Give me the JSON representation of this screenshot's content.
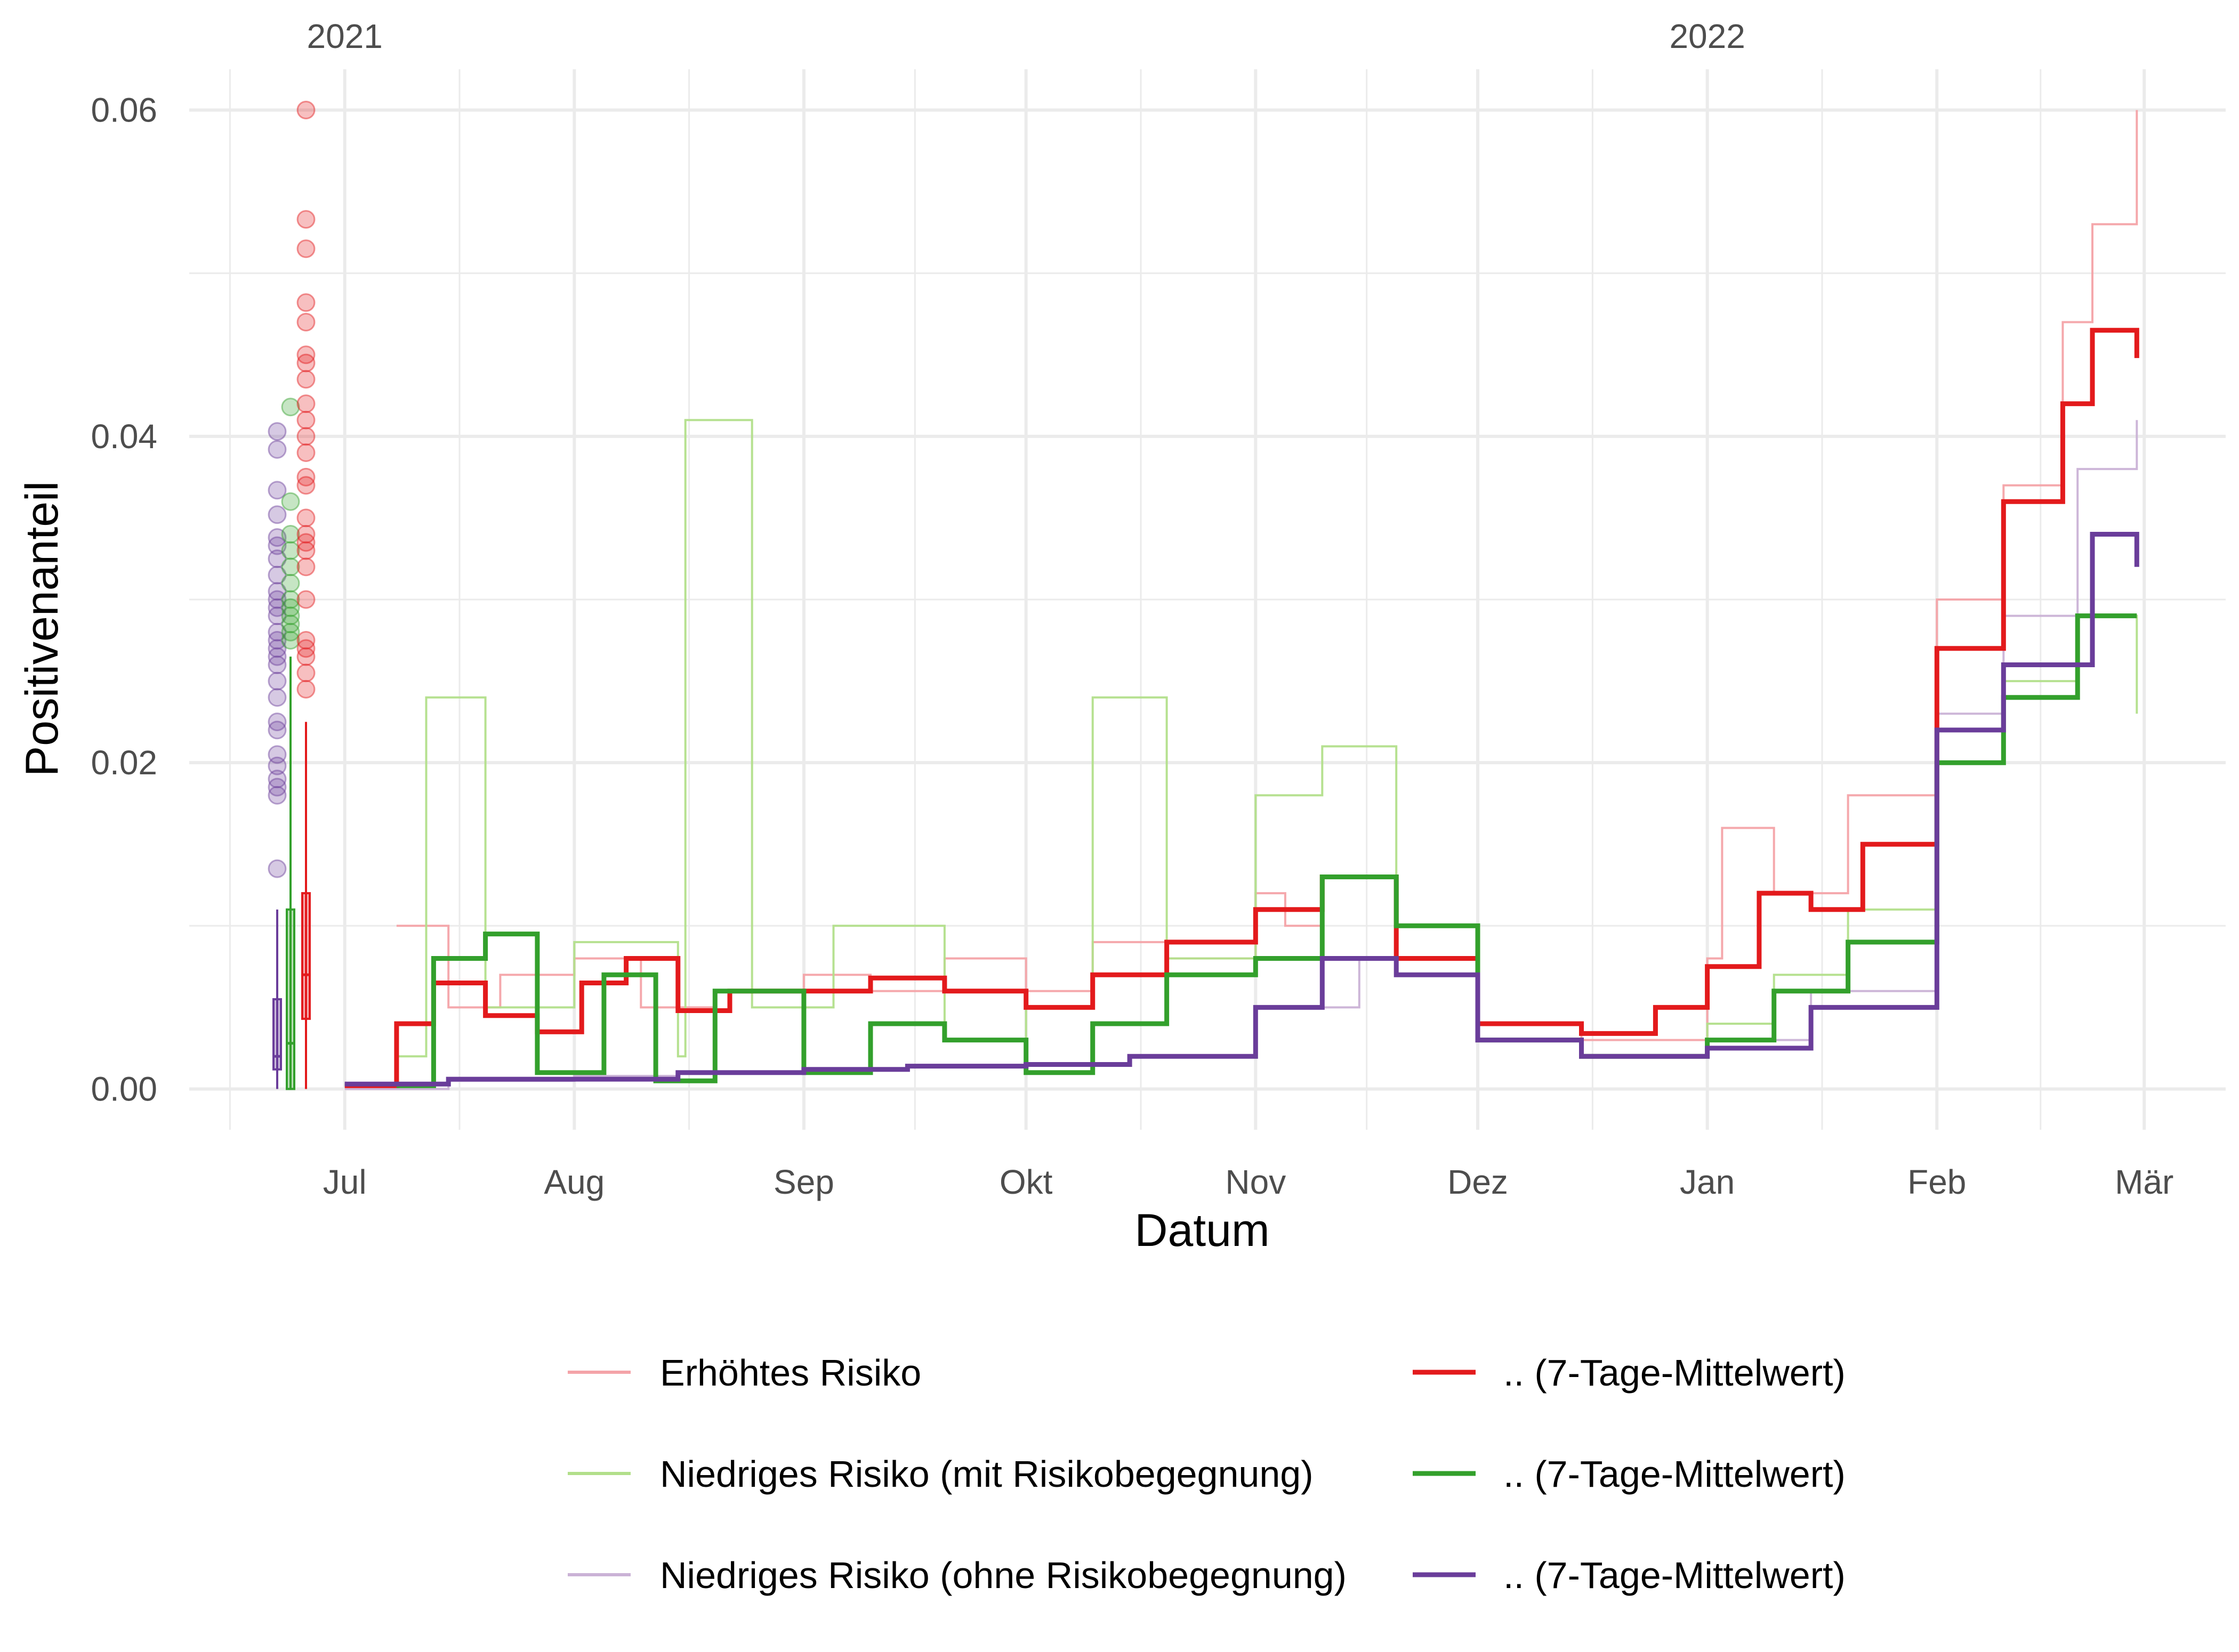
{
  "chart_data": {
    "type": "line",
    "xlabel": "Datum",
    "ylabel": "Positivenanteil",
    "ylim": [
      -0.0025,
      0.0625
    ],
    "y_ticks": [
      0.0,
      0.02,
      0.04,
      0.06
    ],
    "y_tick_labels": [
      "0.00",
      "0.02",
      "0.04",
      "0.06"
    ],
    "x_range": [
      "2021-06-10",
      "2022-03-12"
    ],
    "x_ticks": [
      {
        "date": "2021-07-01",
        "label": "Jul"
      },
      {
        "date": "2021-08-01",
        "label": "Aug"
      },
      {
        "date": "2021-09-01",
        "label": "Sep"
      },
      {
        "date": "2021-10-01",
        "label": "Okt"
      },
      {
        "date": "2021-11-01",
        "label": "Nov"
      },
      {
        "date": "2021-12-01",
        "label": "Dez"
      },
      {
        "date": "2022-01-01",
        "label": "Jan"
      },
      {
        "date": "2022-02-01",
        "label": "Feb"
      },
      {
        "date": "2022-03-01",
        "label": "Mär"
      }
    ],
    "year_labels": [
      {
        "date": "2021-07-01",
        "label": "2021"
      },
      {
        "date": "2022-01-01",
        "label": "2022"
      }
    ],
    "grid": true,
    "legend_position": "bottom",
    "colors": {
      "red_light": "#f4a3a8",
      "red": "#e31a1c",
      "green_light": "#b2df8a",
      "green": "#33a02c",
      "purple_light": "#cab2d6",
      "purple": "#6a3d9a"
    },
    "series": [
      {
        "name": "Erhöhtes Risiko",
        "color": "#f4a3a8",
        "style": "thin",
        "x": [
          "2021-07-08",
          "2021-07-15",
          "2021-07-22",
          "2021-08-01",
          "2021-08-10",
          "2021-08-20",
          "2021-09-01",
          "2021-09-10",
          "2021-09-20",
          "2021-10-01",
          "2021-10-10",
          "2021-10-20",
          "2021-11-01",
          "2021-11-05",
          "2021-11-10",
          "2021-11-20",
          "2021-12-01",
          "2021-12-15",
          "2022-01-01",
          "2022-01-03",
          "2022-01-10",
          "2022-01-20",
          "2022-02-01",
          "2022-02-10",
          "2022-02-18",
          "2022-02-22",
          "2022-02-28"
        ],
        "y": [
          0.01,
          0.005,
          0.007,
          0.008,
          0.005,
          0.006,
          0.007,
          0.006,
          0.008,
          0.006,
          0.009,
          0.008,
          0.012,
          0.01,
          0.013,
          0.01,
          0.004,
          0.003,
          0.008,
          0.016,
          0.012,
          0.018,
          0.03,
          0.037,
          0.047,
          0.053,
          0.06
        ]
      },
      {
        "name": "Niedriges Risiko (mit Risikobegegnung)",
        "color": "#b2df8a",
        "style": "thin",
        "x": [
          "2021-07-08",
          "2021-07-12",
          "2021-07-20",
          "2021-08-01",
          "2021-08-15",
          "2021-08-16",
          "2021-08-25",
          "2021-09-05",
          "2021-09-20",
          "2021-10-01",
          "2021-10-10",
          "2021-10-20",
          "2021-11-01",
          "2021-11-10",
          "2021-11-20",
          "2021-12-01",
          "2021-12-15",
          "2022-01-01",
          "2022-01-10",
          "2022-01-20",
          "2022-02-01",
          "2022-02-10",
          "2022-02-20",
          "2022-02-28"
        ],
        "y": [
          0.002,
          0.024,
          0.005,
          0.009,
          0.002,
          0.041,
          0.005,
          0.01,
          0.003,
          0.005,
          0.024,
          0.008,
          0.018,
          0.021,
          0.008,
          0.003,
          0.002,
          0.004,
          0.007,
          0.011,
          0.02,
          0.025,
          0.029,
          0.023
        ]
      },
      {
        "name": "Niedriges Risiko (ohne Risikobegegnung)",
        "color": "#cab2d6",
        "style": "thin",
        "x": [
          "2021-07-01",
          "2021-07-15",
          "2021-08-01",
          "2021-08-15",
          "2021-09-01",
          "2021-09-15",
          "2021-10-01",
          "2021-10-15",
          "2021-11-01",
          "2021-11-15",
          "2021-12-01",
          "2021-12-15",
          "2022-01-01",
          "2022-01-15",
          "2022-02-01",
          "2022-02-10",
          "2022-02-20",
          "2022-02-28"
        ],
        "y": [
          0.0,
          0.0005,
          0.0008,
          0.001,
          0.0012,
          0.0014,
          0.0015,
          0.002,
          0.005,
          0.008,
          0.003,
          0.002,
          0.003,
          0.006,
          0.023,
          0.029,
          0.038,
          0.041
        ]
      },
      {
        "name": ".. (7-Tage-Mittelwert)",
        "color": "#e31a1c",
        "style": "thick",
        "x": [
          "2021-07-01",
          "2021-07-08",
          "2021-07-13",
          "2021-07-20",
          "2021-07-27",
          "2021-08-02",
          "2021-08-08",
          "2021-08-15",
          "2021-08-22",
          "2021-09-01",
          "2021-09-10",
          "2021-09-20",
          "2021-10-01",
          "2021-10-10",
          "2021-10-20",
          "2021-11-01",
          "2021-11-10",
          "2021-11-20",
          "2021-12-01",
          "2021-12-15",
          "2021-12-25",
          "2022-01-01",
          "2022-01-08",
          "2022-01-15",
          "2022-01-22",
          "2022-02-01",
          "2022-02-10",
          "2022-02-18",
          "2022-02-22",
          "2022-02-28"
        ],
        "y": [
          0.0002,
          0.004,
          0.0065,
          0.0045,
          0.0035,
          0.0065,
          0.008,
          0.0048,
          0.006,
          0.006,
          0.0068,
          0.006,
          0.005,
          0.007,
          0.009,
          0.011,
          0.013,
          0.008,
          0.004,
          0.0034,
          0.005,
          0.0075,
          0.012,
          0.011,
          0.015,
          0.027,
          0.036,
          0.042,
          0.0465,
          0.0448
        ]
      },
      {
        "name": ".. (7-Tage-Mittelwert)",
        "color": "#33a02c",
        "style": "thick",
        "x": [
          "2021-07-08",
          "2021-07-13",
          "2021-07-20",
          "2021-07-27",
          "2021-08-05",
          "2021-08-12",
          "2021-08-20",
          "2021-09-01",
          "2021-09-10",
          "2021-09-20",
          "2021-10-01",
          "2021-10-10",
          "2021-10-20",
          "2021-11-01",
          "2021-11-10",
          "2021-11-20",
          "2021-12-01",
          "2021-12-15",
          "2022-01-01",
          "2022-01-10",
          "2022-01-20",
          "2022-02-01",
          "2022-02-10",
          "2022-02-20",
          "2022-02-28"
        ],
        "y": [
          0.0002,
          0.008,
          0.0095,
          0.001,
          0.007,
          0.0005,
          0.006,
          0.001,
          0.004,
          0.003,
          0.001,
          0.004,
          0.007,
          0.008,
          0.013,
          0.01,
          0.003,
          0.002,
          0.003,
          0.006,
          0.009,
          0.02,
          0.024,
          0.029,
          0.029
        ]
      },
      {
        "name": ".. (7-Tage-Mittelwert)",
        "color": "#6a3d9a",
        "style": "thick",
        "x": [
          "2021-07-01",
          "2021-07-15",
          "2021-08-01",
          "2021-08-15",
          "2021-09-01",
          "2021-09-15",
          "2021-10-01",
          "2021-10-15",
          "2021-11-01",
          "2021-11-10",
          "2021-11-20",
          "2021-12-01",
          "2021-12-15",
          "2022-01-01",
          "2022-01-15",
          "2022-02-01",
          "2022-02-10",
          "2022-02-22",
          "2022-02-28"
        ],
        "y": [
          0.0003,
          0.0006,
          0.0006,
          0.001,
          0.0012,
          0.0014,
          0.0015,
          0.002,
          0.005,
          0.008,
          0.007,
          0.003,
          0.002,
          0.0025,
          0.005,
          0.022,
          0.026,
          0.034,
          0.032
        ]
      }
    ],
    "distributions": [
      {
        "color": "#6a3d9a",
        "points": [
          0.0135,
          0.018,
          0.0185,
          0.019,
          0.0198,
          0.0205,
          0.022,
          0.0225,
          0.024,
          0.025,
          0.026,
          0.0265,
          0.027,
          0.0275,
          0.028,
          0.029,
          0.0295,
          0.03,
          0.0305,
          0.0315,
          0.0325,
          0.0333,
          0.0338,
          0.0352,
          0.0367,
          0.0392,
          0.0403
        ],
        "box": {
          "whisker_low": 0.0,
          "q1": 0.0012,
          "median": 0.002,
          "q3": 0.0055,
          "whisker_high": 0.011
        }
      },
      {
        "color": "#33a02c",
        "points": [
          0.0275,
          0.028,
          0.0285,
          0.029,
          0.0295,
          0.03,
          0.031,
          0.032,
          0.033,
          0.034,
          0.036,
          0.0418
        ],
        "box": {
          "whisker_low": 0.0,
          "q1": 0.0,
          "median": 0.0028,
          "q3": 0.011,
          "whisker_high": 0.0265
        }
      },
      {
        "color": "#e31a1c",
        "points": [
          0.0245,
          0.0255,
          0.0265,
          0.027,
          0.0275,
          0.03,
          0.032,
          0.033,
          0.0335,
          0.034,
          0.035,
          0.037,
          0.0375,
          0.039,
          0.04,
          0.041,
          0.042,
          0.0435,
          0.0445,
          0.045,
          0.047,
          0.0482,
          0.0515,
          0.0533,
          0.06
        ],
        "box": {
          "whisker_low": 0.0,
          "q1": 0.0043,
          "median": 0.007,
          "q3": 0.012,
          "whisker_high": 0.0225
        }
      }
    ]
  },
  "legend": {
    "left": [
      {
        "label": "Erhöhtes Risiko",
        "color": "#f4a3a8",
        "style": "thin"
      },
      {
        "label": "Niedriges Risiko (mit Risikobegegnung)",
        "color": "#b2df8a",
        "style": "thin"
      },
      {
        "label": "Niedriges Risiko (ohne Risikobegegnung)",
        "color": "#cab2d6",
        "style": "thin"
      }
    ],
    "right": [
      {
        "label": ".. (7-Tage-Mittelwert)",
        "color": "#e31a1c",
        "style": "thick"
      },
      {
        "label": ".. (7-Tage-Mittelwert)",
        "color": "#33a02c",
        "style": "thick"
      },
      {
        "label": ".. (7-Tage-Mittelwert)",
        "color": "#6a3d9a",
        "style": "thick"
      }
    ]
  }
}
